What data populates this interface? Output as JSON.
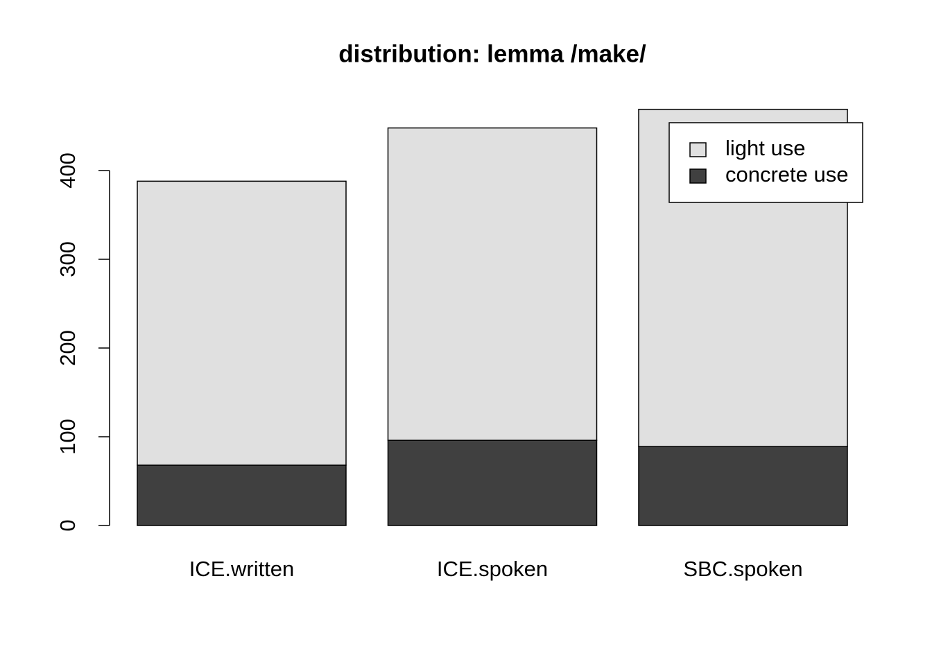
{
  "chart_data": {
    "type": "stacked_bar",
    "title": "distribution: lemma /make/",
    "categories": [
      "ICE.written",
      "ICE.spoken",
      "SBC.spoken"
    ],
    "series": [
      {
        "name": "light use",
        "color": "#e0e0e0",
        "values": [
          320,
          352,
          380
        ]
      },
      {
        "name": "concrete use",
        "color": "#404040",
        "values": [
          68,
          96,
          89
        ]
      }
    ],
    "ylim": [
      0,
      480
    ],
    "yticks": [
      0,
      100,
      200,
      300,
      400
    ],
    "legend": "top-right"
  }
}
